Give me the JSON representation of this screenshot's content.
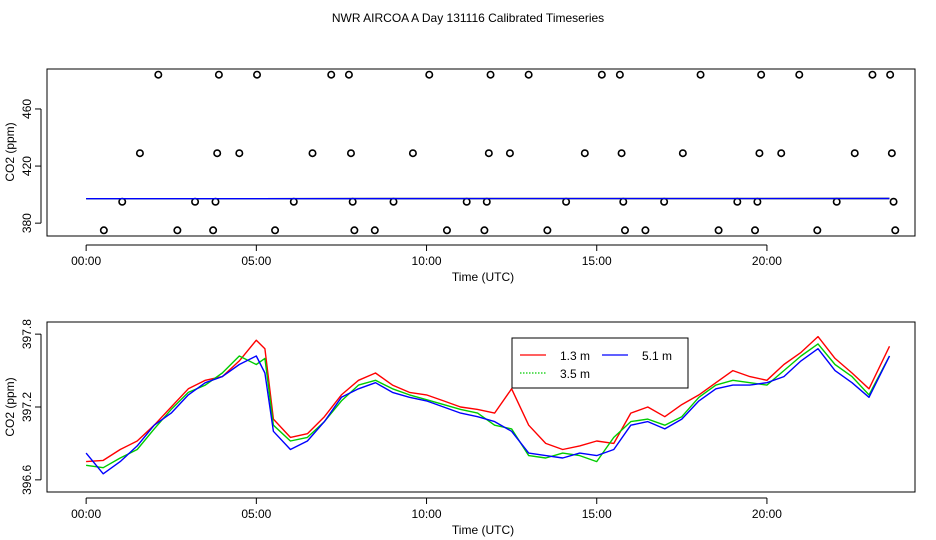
{
  "figure_title": "NWR AIRCOA A  Day 131116  Calibrated Timeseries",
  "chart_data": [
    {
      "type": "scatter",
      "title": "",
      "xlabel": "Time (UTC)",
      "ylabel": "CO2 (ppm)",
      "xlim": [
        -1.15,
        24.35
      ],
      "ylim": [
        371,
        488
      ],
      "xticks": [
        {
          "v": 0,
          "label": "00:00"
        },
        {
          "v": 5,
          "label": "05:00"
        },
        {
          "v": 10,
          "label": "10:00"
        },
        {
          "v": 15,
          "label": "15:00"
        },
        {
          "v": 20,
          "label": "20:00"
        }
      ],
      "yticks": [
        {
          "v": 380,
          "label": "380"
        },
        {
          "v": 420,
          "label": "420"
        },
        {
          "v": 460,
          "label": "460"
        }
      ],
      "points": [
        {
          "x": 0.52,
          "y": 375
        },
        {
          "x": 1.06,
          "y": 395
        },
        {
          "x": 1.58,
          "y": 429
        },
        {
          "x": 2.12,
          "y": 484
        },
        {
          "x": 2.68,
          "y": 375
        },
        {
          "x": 3.2,
          "y": 395
        },
        {
          "x": 3.73,
          "y": 375
        },
        {
          "x": 3.8,
          "y": 395
        },
        {
          "x": 3.85,
          "y": 429
        },
        {
          "x": 3.9,
          "y": 484
        },
        {
          "x": 4.5,
          "y": 429
        },
        {
          "x": 5.02,
          "y": 484
        },
        {
          "x": 5.55,
          "y": 375
        },
        {
          "x": 6.1,
          "y": 395
        },
        {
          "x": 6.65,
          "y": 429
        },
        {
          "x": 7.2,
          "y": 484
        },
        {
          "x": 7.72,
          "y": 484
        },
        {
          "x": 7.78,
          "y": 429
        },
        {
          "x": 7.83,
          "y": 395
        },
        {
          "x": 7.88,
          "y": 375
        },
        {
          "x": 8.48,
          "y": 375
        },
        {
          "x": 9.03,
          "y": 395
        },
        {
          "x": 9.6,
          "y": 429
        },
        {
          "x": 10.08,
          "y": 484
        },
        {
          "x": 10.6,
          "y": 375
        },
        {
          "x": 11.18,
          "y": 395
        },
        {
          "x": 11.7,
          "y": 375
        },
        {
          "x": 11.77,
          "y": 395
        },
        {
          "x": 11.83,
          "y": 429
        },
        {
          "x": 11.88,
          "y": 484
        },
        {
          "x": 12.45,
          "y": 429
        },
        {
          "x": 13.0,
          "y": 484
        },
        {
          "x": 13.55,
          "y": 375
        },
        {
          "x": 14.1,
          "y": 395
        },
        {
          "x": 14.65,
          "y": 429
        },
        {
          "x": 15.15,
          "y": 484
        },
        {
          "x": 15.68,
          "y": 484
        },
        {
          "x": 15.73,
          "y": 429
        },
        {
          "x": 15.78,
          "y": 395
        },
        {
          "x": 15.83,
          "y": 375
        },
        {
          "x": 16.43,
          "y": 375
        },
        {
          "x": 16.98,
          "y": 395
        },
        {
          "x": 17.53,
          "y": 429
        },
        {
          "x": 18.05,
          "y": 484
        },
        {
          "x": 18.58,
          "y": 375
        },
        {
          "x": 19.13,
          "y": 395
        },
        {
          "x": 19.65,
          "y": 375
        },
        {
          "x": 19.72,
          "y": 395
        },
        {
          "x": 19.78,
          "y": 429
        },
        {
          "x": 19.83,
          "y": 484
        },
        {
          "x": 20.42,
          "y": 429
        },
        {
          "x": 20.95,
          "y": 484
        },
        {
          "x": 21.48,
          "y": 375
        },
        {
          "x": 22.05,
          "y": 395
        },
        {
          "x": 22.58,
          "y": 429
        },
        {
          "x": 23.1,
          "y": 484
        },
        {
          "x": 23.62,
          "y": 484
        },
        {
          "x": 23.67,
          "y": 429
        },
        {
          "x": 23.72,
          "y": 395
        },
        {
          "x": 23.77,
          "y": 375
        }
      ],
      "series": [
        {
          "name": "1.3 m",
          "color": "#ff0000",
          "x": [
            0,
            23.6
          ],
          "values": [
            397.1,
            397.3
          ]
        },
        {
          "name": "3.5 m",
          "color": "#00cc00",
          "x": [
            0,
            23.6
          ],
          "values": [
            397.1,
            397.3
          ]
        },
        {
          "name": "5.1 m",
          "color": "#0000ff",
          "x": [
            0,
            23.6
          ],
          "values": [
            397.1,
            397.3
          ]
        }
      ]
    },
    {
      "type": "line",
      "title": "",
      "xlabel": "Time (UTC)",
      "ylabel": "CO2 (ppm)",
      "xlim": [
        -1.15,
        24.35
      ],
      "ylim": [
        396.5,
        397.9
      ],
      "xticks": [
        {
          "v": 0,
          "label": "00:00"
        },
        {
          "v": 5,
          "label": "05:00"
        },
        {
          "v": 10,
          "label": "10:00"
        },
        {
          "v": 15,
          "label": "15:00"
        },
        {
          "v": 20,
          "label": "20:00"
        }
      ],
      "yticks": [
        {
          "v": 396.6,
          "label": "396.6"
        },
        {
          "v": 397.2,
          "label": "397.2"
        },
        {
          "v": 397.8,
          "label": "397.8"
        }
      ],
      "legend": {
        "position": "top-center",
        "entries": [
          "1.3 m",
          "3.5 m",
          "5.1 m"
        ]
      },
      "x": [
        0,
        0.5,
        1,
        1.5,
        2,
        2.5,
        3,
        3.5,
        4,
        4.5,
        5,
        5.25,
        5.5,
        6,
        6.5,
        7,
        7.5,
        8,
        8.5,
        9,
        9.5,
        10,
        10.5,
        11,
        11.5,
        12,
        12.5,
        13,
        13.5,
        14,
        14.5,
        15,
        15.5,
        16,
        16.5,
        17,
        17.5,
        18,
        18.5,
        19,
        19.5,
        20,
        20.5,
        21,
        21.5,
        22,
        22.5,
        23,
        23.6
      ],
      "series": [
        {
          "name": "1.3 m",
          "color": "#ff0000",
          "values": [
            396.75,
            396.76,
            396.85,
            396.92,
            397.05,
            397.2,
            397.35,
            397.42,
            397.45,
            397.58,
            397.75,
            397.68,
            397.1,
            396.95,
            396.98,
            397.12,
            397.3,
            397.42,
            397.48,
            397.38,
            397.32,
            397.3,
            397.25,
            397.2,
            397.18,
            397.15,
            397.35,
            397.05,
            396.9,
            396.85,
            396.88,
            396.92,
            396.9,
            397.15,
            397.2,
            397.12,
            397.22,
            397.3,
            397.4,
            397.5,
            397.45,
            397.42,
            397.55,
            397.65,
            397.78,
            397.6,
            397.48,
            397.35,
            397.7
          ]
        },
        {
          "name": "3.5 m",
          "color": "#00cc00",
          "values": [
            396.72,
            396.7,
            396.78,
            396.85,
            397.02,
            397.18,
            397.32,
            397.38,
            397.48,
            397.62,
            397.55,
            397.6,
            397.05,
            396.92,
            396.95,
            397.08,
            397.25,
            397.38,
            397.42,
            397.35,
            397.3,
            397.26,
            397.22,
            397.18,
            397.15,
            397.05,
            397.02,
            396.8,
            396.78,
            396.82,
            396.8,
            396.75,
            396.95,
            397.08,
            397.1,
            397.05,
            397.12,
            397.28,
            397.38,
            397.42,
            397.4,
            397.38,
            397.5,
            397.62,
            397.72,
            397.55,
            397.45,
            397.3,
            397.62
          ]
        },
        {
          "name": "5.1 m",
          "color": "#0000ff",
          "values": [
            396.82,
            396.65,
            396.75,
            396.88,
            397.05,
            397.15,
            397.3,
            397.4,
            397.45,
            397.55,
            397.62,
            397.48,
            397.0,
            396.85,
            396.92,
            397.08,
            397.28,
            397.35,
            397.4,
            397.32,
            397.28,
            397.25,
            397.2,
            397.15,
            397.12,
            397.08,
            397.0,
            396.82,
            396.8,
            396.78,
            396.82,
            396.8,
            396.85,
            397.05,
            397.08,
            397.02,
            397.1,
            397.25,
            397.35,
            397.38,
            397.38,
            397.4,
            397.45,
            397.58,
            397.68,
            397.5,
            397.4,
            397.28,
            397.62
          ]
        }
      ]
    }
  ]
}
